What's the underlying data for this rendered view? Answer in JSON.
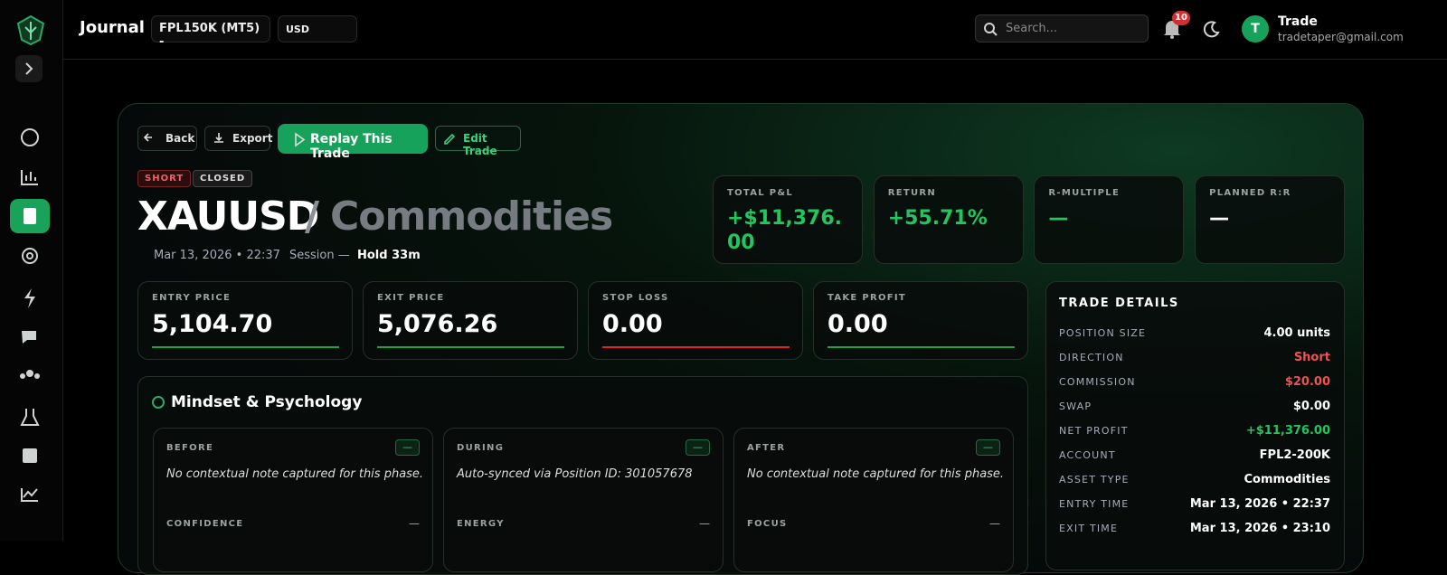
{
  "header": {
    "title": "Journal",
    "account": "FPL150K (MT5) -",
    "currency": "USD",
    "search_placeholder": "Search...",
    "notifications": "10",
    "user": {
      "avatar": "T",
      "name": "Trade",
      "email": "tradetaper@gmail.com"
    }
  },
  "actions": [
    "Back",
    "Export",
    "Replay This Trade",
    "Edit Trade"
  ],
  "badges": [
    "SHORT",
    "CLOSED"
  ],
  "trade": {
    "symbol": "XAUUSD",
    "separator": "/",
    "asset_class": "Commodities",
    "date": "Mar 13, 2026 • 22:37",
    "session": "Session —",
    "hold": "Hold 33m"
  },
  "stats": [
    {
      "label": "TOTAL P&L",
      "value": "+$11,376.00",
      "color": "#22c55e"
    },
    {
      "label": "RETURN",
      "value": "+55.71%",
      "color": "#22c55e"
    },
    {
      "label": "R-MULTIPLE",
      "value": "—",
      "color": "#22c55e"
    },
    {
      "label": "PLANNED R:R",
      "value": "—",
      "color": "#ffffff"
    }
  ],
  "prices": [
    {
      "label": "ENTRY PRICE",
      "value": "5,104.70",
      "color": "#16a34a"
    },
    {
      "label": "EXIT PRICE",
      "value": "5,076.26",
      "color": "#16a34a"
    },
    {
      "label": "STOP LOSS",
      "value": "0.00",
      "color": "#dc2626"
    },
    {
      "label": "TAKE PROFIT",
      "value": "0.00",
      "color": "#16a34a"
    }
  ],
  "mindset": {
    "title": "Mindset & Psychology",
    "phases": [
      {
        "label": "BEFORE",
        "badge": "—",
        "note": "No contextual note captured for this phase.",
        "metric": "CONFIDENCE",
        "metric_value": "—"
      },
      {
        "label": "DURING",
        "badge": "—",
        "note": "Auto-synced via Position ID: 301057678",
        "metric": "ENERGY",
        "metric_value": "—"
      },
      {
        "label": "AFTER",
        "badge": "—",
        "note": "No contextual note captured for this phase.",
        "metric": "FOCUS",
        "metric_value": "—"
      }
    ]
  },
  "trade_details": {
    "title": "TRADE DETAILS",
    "rows": [
      {
        "label": "POSITION SIZE",
        "value": "4.00 units",
        "color": "#ffffff"
      },
      {
        "label": "DIRECTION",
        "value": "Short",
        "color": "#f05252"
      },
      {
        "label": "COMMISSION",
        "value": "$20.00",
        "color": "#f05252"
      },
      {
        "label": "SWAP",
        "value": "$0.00",
        "color": "#ffffff"
      },
      {
        "label": "NET PROFIT",
        "value": "+$11,376.00",
        "color": "#22c55e"
      },
      {
        "label": "ACCOUNT",
        "value": "FPL2-200K",
        "color": "#ffffff"
      },
      {
        "label": "ASSET TYPE",
        "value": "Commodities",
        "color": "#ffffff"
      },
      {
        "label": "ENTRY TIME",
        "value": "Mar 13, 2026 • 22:37",
        "color": "#ffffff"
      },
      {
        "label": "EXIT TIME",
        "value": "Mar 13, 2026 • 23:10",
        "color": "#ffffff"
      }
    ]
  }
}
